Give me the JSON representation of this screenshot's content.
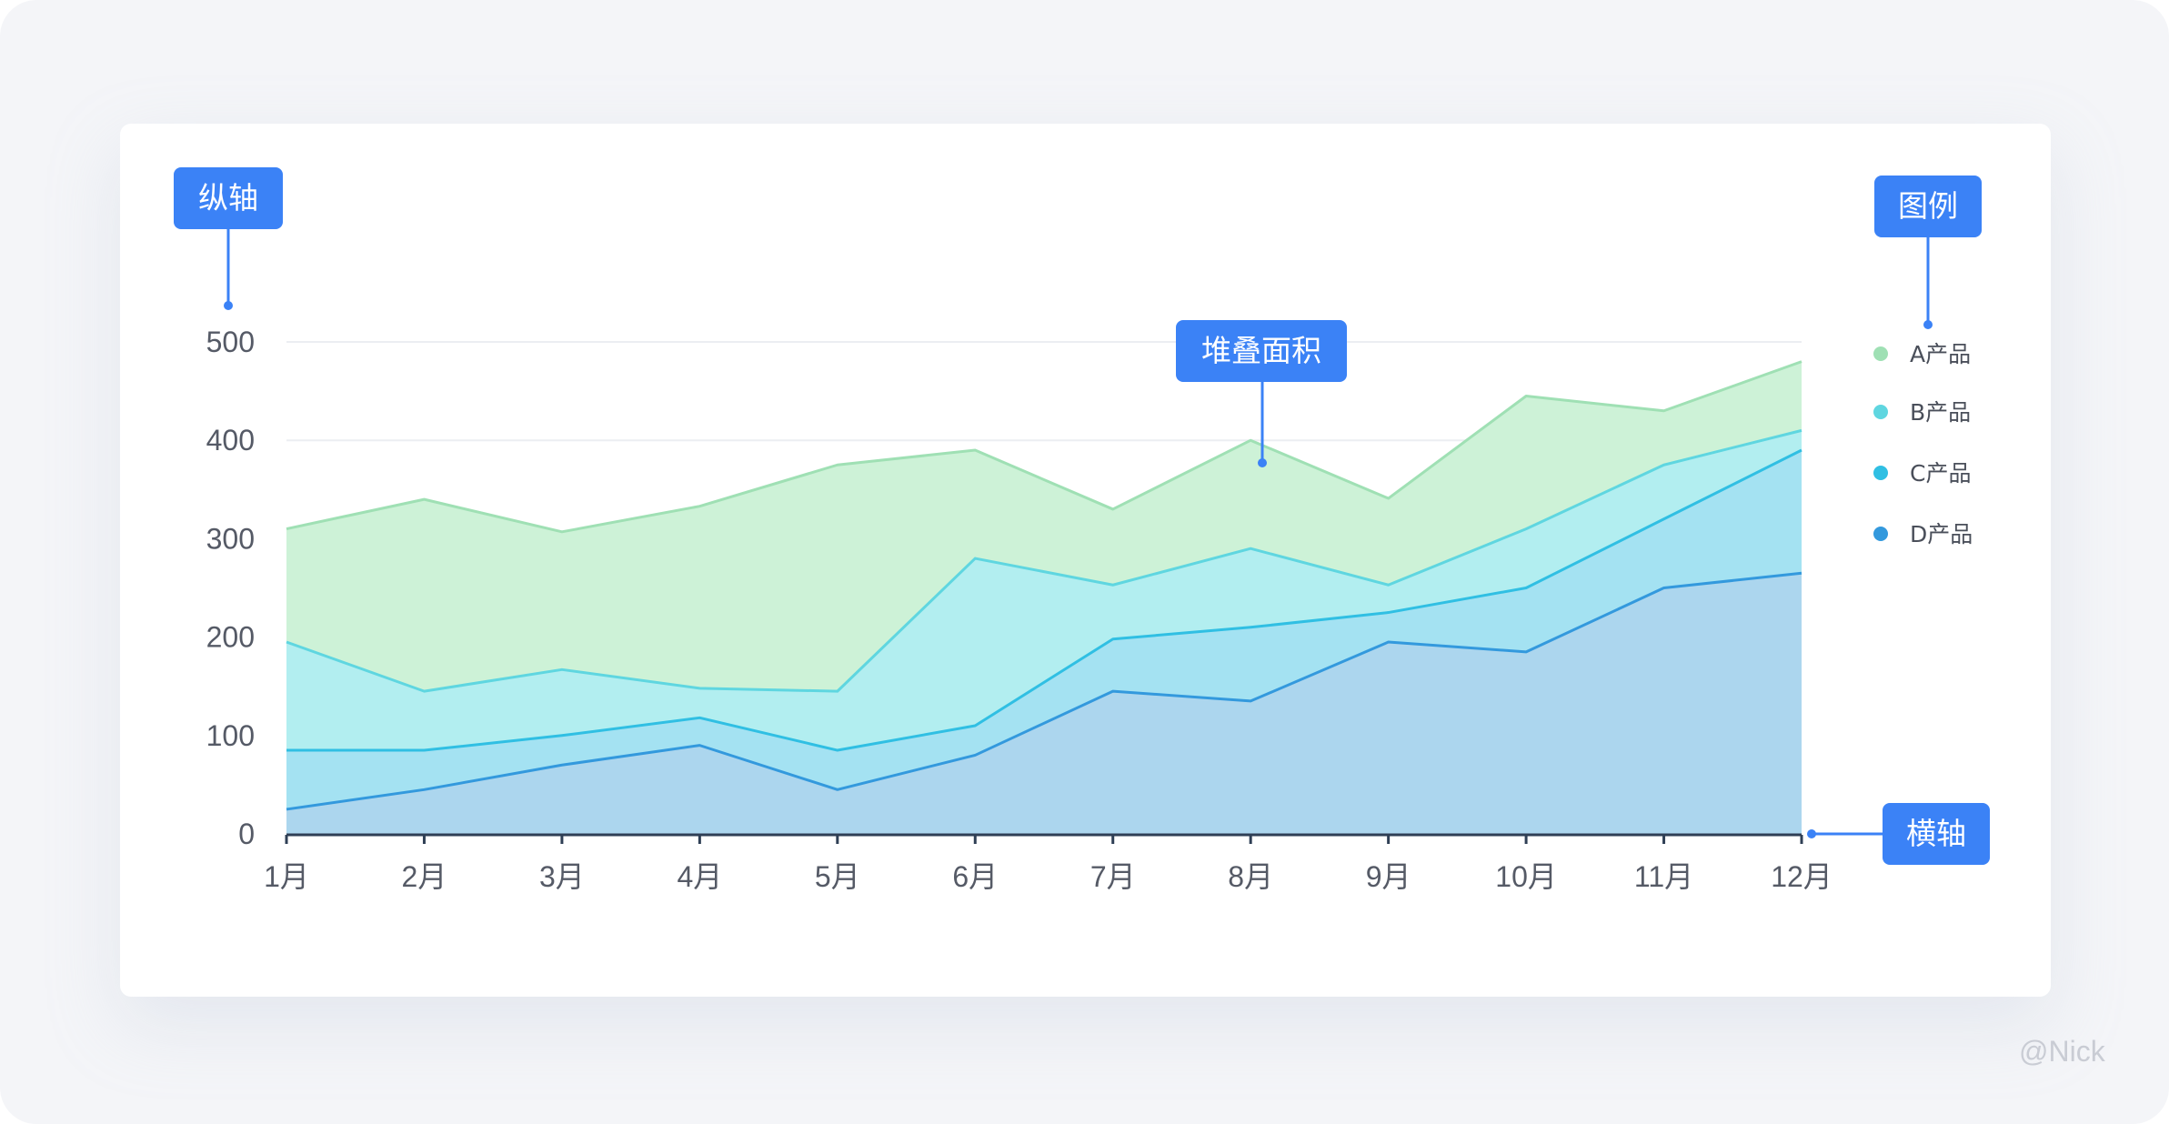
{
  "callouts": {
    "y_axis": "纵轴",
    "legend": "图例",
    "stacked_area": "堆叠面积",
    "x_axis": "横轴"
  },
  "watermark": "@Nick",
  "colors": {
    "accent": "#3b82f6",
    "A": "#9fe0b4",
    "B": "#5fd6e0",
    "C": "#30bfe3",
    "D": "#3399dd"
  },
  "chart_data": {
    "type": "area",
    "stacked": true,
    "categories": [
      "1月",
      "2月",
      "3月",
      "4月",
      "5月",
      "6月",
      "7月",
      "8月",
      "9月",
      "10月",
      "11月",
      "12月"
    ],
    "y_ticks": [
      "500",
      "400",
      "300",
      "200",
      "100",
      "0"
    ],
    "ylim": [
      0,
      500
    ],
    "grid": true,
    "legend_position": "right",
    "series": [
      {
        "name": "A产品",
        "color": "#9fe0b4",
        "fill": "#cdf2d7",
        "values": [
          115,
          195,
          140,
          185,
          230,
          110,
          77,
          110,
          88,
          135,
          55,
          70
        ]
      },
      {
        "name": "B产品",
        "color": "#5fd6e0",
        "fill": "#b2eef0",
        "values": [
          110,
          60,
          67,
          30,
          60,
          170,
          55,
          80,
          28,
          60,
          55,
          20
        ]
      },
      {
        "name": "C产品",
        "color": "#30bfe3",
        "fill": "#a4e2f2",
        "values": [
          60,
          40,
          30,
          28,
          40,
          30,
          53,
          75,
          30,
          65,
          70,
          125
        ]
      },
      {
        "name": "D产品",
        "color": "#3399dd",
        "fill": "#acd6ee",
        "values": [
          25,
          45,
          70,
          90,
          45,
          80,
          145,
          135,
          195,
          185,
          250,
          265
        ]
      }
    ]
  }
}
